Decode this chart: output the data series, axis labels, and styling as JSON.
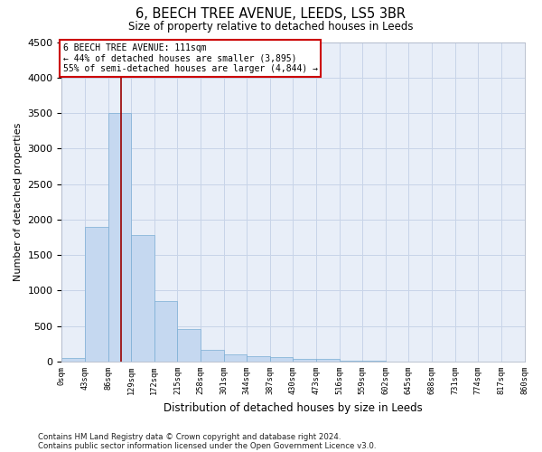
{
  "title1": "6, BEECH TREE AVENUE, LEEDS, LS5 3BR",
  "title2": "Size of property relative to detached houses in Leeds",
  "xlabel": "Distribution of detached houses by size in Leeds",
  "ylabel": "Number of detached properties",
  "bin_edges": [
    0,
    43,
    86,
    129,
    172,
    215,
    258,
    301,
    344,
    387,
    430,
    473,
    516,
    559,
    602,
    645,
    688,
    731,
    774,
    817,
    860
  ],
  "bar_heights": [
    50,
    1900,
    3500,
    1780,
    850,
    460,
    160,
    100,
    70,
    55,
    40,
    30,
    10,
    5,
    3,
    2,
    2,
    1,
    1,
    1
  ],
  "bar_color": "#c5d8f0",
  "bar_edge_color": "#7aadd4",
  "property_size": 111,
  "vline_color": "#990000",
  "annotation_line1": "6 BEECH TREE AVENUE: 111sqm",
  "annotation_line2": "← 44% of detached houses are smaller (3,895)",
  "annotation_line3": "55% of semi-detached houses are larger (4,844) →",
  "annotation_box_color": "#cc0000",
  "ylim": [
    0,
    4500
  ],
  "yticks": [
    0,
    500,
    1000,
    1500,
    2000,
    2500,
    3000,
    3500,
    4000,
    4500
  ],
  "grid_color": "#c8d4e8",
  "background_color": "#e8eef8",
  "footnote1": "Contains HM Land Registry data © Crown copyright and database right 2024.",
  "footnote2": "Contains public sector information licensed under the Open Government Licence v3.0."
}
